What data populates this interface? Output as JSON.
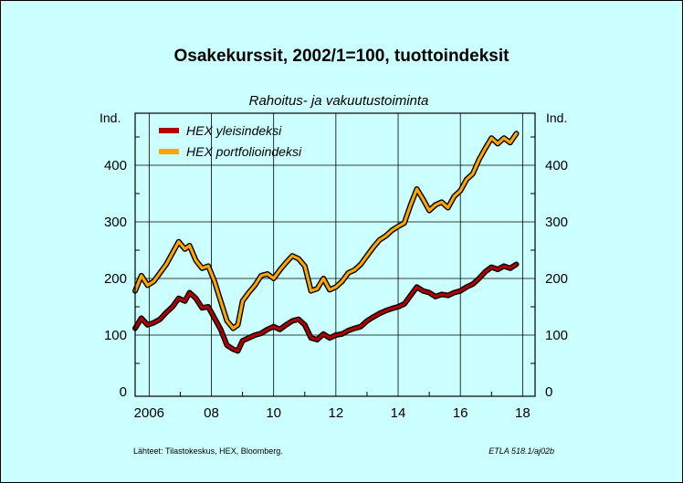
{
  "chart_data": {
    "type": "line",
    "title": "Osakekurssit, 2002/1=100, tuottoindeksit",
    "subtitle": "Rahoitus- ja vakuutustoiminta",
    "ylabel_left": "Ind.",
    "ylabel_right": "Ind.",
    "ylim": [
      0,
      480
    ],
    "yticks": [
      0,
      100,
      200,
      300,
      400
    ],
    "xlim": [
      2005.55,
      2018.4
    ],
    "xtick_labels": [
      {
        "x": 2006,
        "label": "2006"
      },
      {
        "x": 2008,
        "label": "08"
      },
      {
        "x": 2010,
        "label": "10"
      },
      {
        "x": 2012,
        "label": "12"
      },
      {
        "x": 2014,
        "label": "14"
      },
      {
        "x": 2016,
        "label": "16"
      },
      {
        "x": 2018,
        "label": "18"
      }
    ],
    "grid": true,
    "legend_position": "top-left",
    "series": [
      {
        "name": "HEX yleisindeksi",
        "color": "#b00000",
        "x": [
          2005.55,
          2005.75,
          2005.95,
          2006.15,
          2006.35,
          2006.55,
          2006.75,
          2006.95,
          2007.15,
          2007.3,
          2007.5,
          2007.7,
          2007.9,
          2008.1,
          2008.3,
          2008.5,
          2008.7,
          2008.85,
          2009.0,
          2009.2,
          2009.4,
          2009.6,
          2009.8,
          2010.0,
          2010.2,
          2010.4,
          2010.6,
          2010.8,
          2011.0,
          2011.2,
          2011.4,
          2011.6,
          2011.8,
          2012.0,
          2012.2,
          2012.4,
          2012.6,
          2012.8,
          2013.0,
          2013.2,
          2013.4,
          2013.6,
          2013.8,
          2014.0,
          2014.2,
          2014.4,
          2014.6,
          2014.8,
          2015.0,
          2015.2,
          2015.4,
          2015.6,
          2015.8,
          2016.0,
          2016.2,
          2016.4,
          2016.6,
          2016.8,
          2017.0,
          2017.2,
          2017.4,
          2017.6,
          2017.8
        ],
        "values": [
          112,
          130,
          118,
          122,
          128,
          140,
          150,
          165,
          160,
          175,
          165,
          148,
          150,
          130,
          110,
          82,
          75,
          72,
          90,
          95,
          100,
          103,
          110,
          115,
          110,
          118,
          125,
          128,
          118,
          95,
          92,
          102,
          95,
          100,
          102,
          108,
          112,
          115,
          125,
          132,
          138,
          143,
          147,
          150,
          155,
          170,
          185,
          178,
          175,
          168,
          172,
          170,
          175,
          178,
          185,
          190,
          200,
          212,
          220,
          216,
          222,
          218,
          225
        ]
      },
      {
        "name": "HEX portfolioindeksi",
        "color": "#ffa500",
        "x": [
          2005.55,
          2005.75,
          2005.95,
          2006.15,
          2006.35,
          2006.55,
          2006.75,
          2006.95,
          2007.15,
          2007.3,
          2007.5,
          2007.7,
          2007.9,
          2008.1,
          2008.3,
          2008.5,
          2008.7,
          2008.85,
          2009.0,
          2009.2,
          2009.4,
          2009.6,
          2009.8,
          2010.0,
          2010.2,
          2010.4,
          2010.6,
          2010.8,
          2011.0,
          2011.2,
          2011.4,
          2011.6,
          2011.8,
          2012.0,
          2012.2,
          2012.4,
          2012.6,
          2012.8,
          2013.0,
          2013.2,
          2013.4,
          2013.6,
          2013.8,
          2014.0,
          2014.2,
          2014.4,
          2014.6,
          2014.8,
          2015.0,
          2015.2,
          2015.4,
          2015.6,
          2015.8,
          2016.0,
          2016.2,
          2016.4,
          2016.6,
          2016.8,
          2017.0,
          2017.2,
          2017.4,
          2017.6,
          2017.8
        ],
        "values": [
          178,
          205,
          188,
          195,
          210,
          225,
          245,
          265,
          252,
          258,
          232,
          218,
          222,
          195,
          160,
          125,
          112,
          118,
          160,
          175,
          188,
          205,
          208,
          200,
          215,
          228,
          240,
          235,
          222,
          178,
          182,
          200,
          180,
          185,
          195,
          210,
          215,
          225,
          240,
          255,
          268,
          275,
          285,
          292,
          298,
          330,
          358,
          340,
          320,
          330,
          335,
          325,
          345,
          355,
          375,
          385,
          410,
          430,
          448,
          438,
          448,
          440,
          456
        ]
      }
    ]
  },
  "footer": {
    "source_label": "Lähteet:",
    "source_text": "Tilastokeskus, HEX, Bloomberg.",
    "code": "ETLA 518.1/aj02b"
  }
}
